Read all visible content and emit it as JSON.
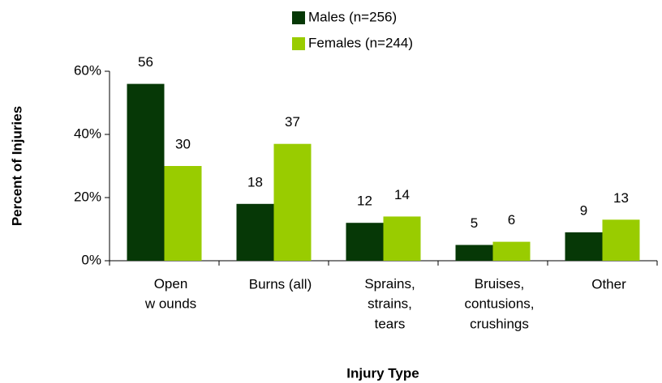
{
  "chart_data": {
    "type": "bar",
    "categories": [
      "Open\nw ounds",
      "Burns (all)",
      "Sprains,\nstrains,\ntears",
      "Bruises,\ncontusions,\ncrushings",
      "Other"
    ],
    "series": [
      {
        "name": "Males (n=256)",
        "color": "#063806",
        "values": [
          56,
          18,
          12,
          5,
          9
        ]
      },
      {
        "name": "Females (n=244)",
        "color": "#99cc00",
        "values": [
          30,
          37,
          14,
          6,
          13
        ]
      }
    ],
    "ylim": [
      0,
      60
    ],
    "yticks": [
      {
        "value": 0,
        "label": "0%"
      },
      {
        "value": 20,
        "label": "20%"
      },
      {
        "value": 40,
        "label": "40%"
      },
      {
        "value": 60,
        "label": "60%"
      }
    ],
    "y_label": "Percent of Injuries",
    "x_label": "Injury Type",
    "legend": "top"
  }
}
